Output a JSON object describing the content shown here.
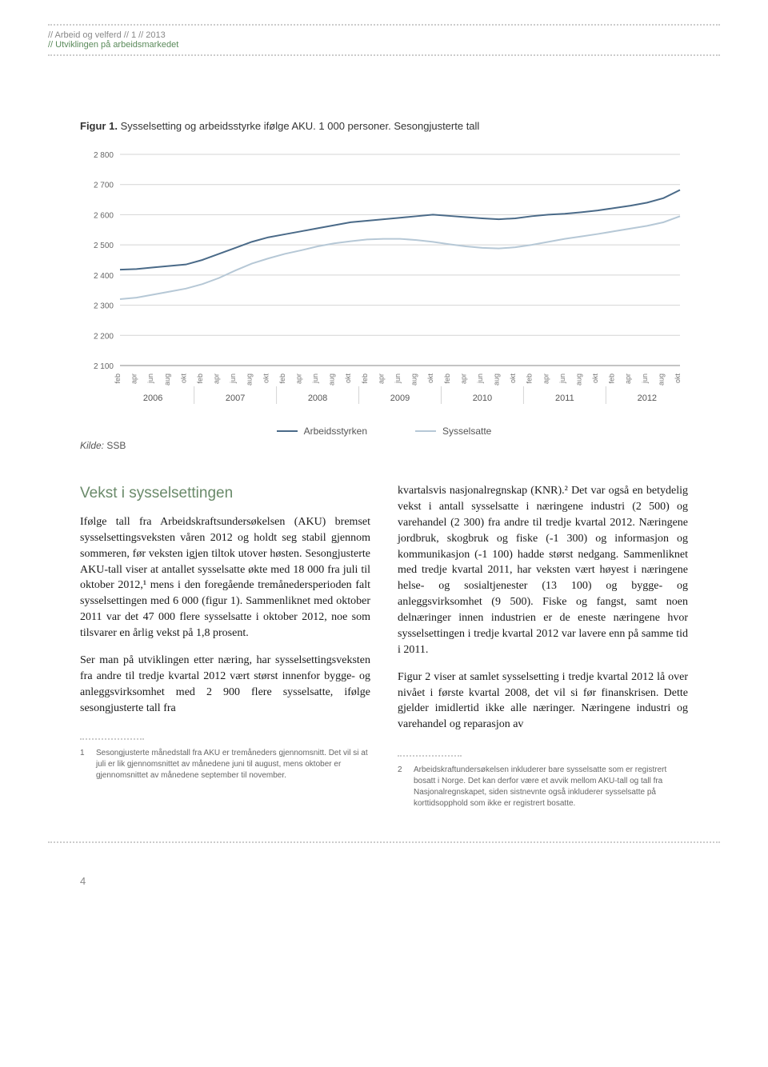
{
  "header": {
    "line1": "//  Arbeid og velferd  //  1  //  2013",
    "line2": "//  Utviklingen på arbeidsmarkedet"
  },
  "figure": {
    "caption_bold": "Figur 1.",
    "caption_rest": " Sysselsetting og arbeidsstyrke ifølge AKU. 1 000 personer. Sesongjusterte tall",
    "source_label": "Kilde:",
    "source_value": " SSB"
  },
  "chart": {
    "type": "line",
    "ylim": [
      2100,
      2800
    ],
    "ytick_step": 100,
    "yticks": [
      2100,
      2200,
      2300,
      2400,
      2500,
      2600,
      2700,
      2800
    ],
    "years": [
      2006,
      2007,
      2008,
      2009,
      2010,
      2011,
      2012
    ],
    "months": [
      "feb",
      "apr",
      "jun",
      "aug",
      "okt"
    ],
    "background_color": "#ffffff",
    "grid_color": "#d4d4d4",
    "axis_color": "#888888",
    "tick_font_size": 10,
    "year_font_size": 11,
    "line_width": 2,
    "series": [
      {
        "name": "Arbeidsstyrken",
        "color": "#4a6a88",
        "values": [
          2418,
          2420,
          2425,
          2430,
          2435,
          2450,
          2470,
          2490,
          2510,
          2525,
          2535,
          2545,
          2555,
          2565,
          2575,
          2580,
          2585,
          2590,
          2595,
          2600,
          2596,
          2592,
          2588,
          2585,
          2588,
          2595,
          2600,
          2603,
          2608,
          2614,
          2622,
          2630,
          2640,
          2655,
          2682
        ]
      },
      {
        "name": "Sysselsatte",
        "color": "#b6c8d6",
        "values": [
          2320,
          2325,
          2335,
          2345,
          2355,
          2370,
          2390,
          2415,
          2438,
          2455,
          2470,
          2482,
          2495,
          2505,
          2512,
          2518,
          2520,
          2520,
          2516,
          2510,
          2502,
          2495,
          2490,
          2488,
          2492,
          2500,
          2510,
          2520,
          2528,
          2536,
          2545,
          2554,
          2563,
          2575,
          2595
        ]
      }
    ],
    "legend": [
      {
        "label": "Arbeidsstyrken",
        "color": "#4a6a88"
      },
      {
        "label": "Sysselsatte",
        "color": "#b6c8d6"
      }
    ]
  },
  "body": {
    "heading": "Vekst i sysselsettingen",
    "left_paras": [
      "Ifølge tall fra Arbeidskraftsundersøkelsen (AKU) bremset sysselsettingsveksten våren 2012 og holdt seg stabil gjennom sommeren, før veksten igjen tiltok utover høsten. Sesongjusterte AKU-tall viser at antallet sysselsatte økte med 18 000 fra juli til oktober 2012,¹ mens i den foregående tremånedersperioden falt sysselsettingen med 6 000 (figur 1). Sammenliknet med oktober 2011 var det 47 000 flere sysselsatte i oktober 2012, noe som tilsvarer en årlig vekst på 1,8 prosent.",
      "Ser man på utviklingen etter næring, har sysselsettingsveksten fra andre til tredje kvartal 2012 vært størst innenfor bygge- og anleggsvirksomhet med 2 900 flere sysselsatte, ifølge sesongjusterte tall fra"
    ],
    "right_paras": [
      "kvartalsvis nasjonalregnskap (KNR).² Det var også en betydelig vekst i antall sysselsatte i næringene industri (2 500) og varehandel (2 300) fra andre til tredje kvartal 2012. Næringene jordbruk, skogbruk og fiske (-1 300) og informasjon og kommunikasjon (-1 100) hadde størst nedgang. Sammenliknet med tredje kvartal 2011, har veksten vært høyest i næringene helse- og sosialtjenester (13 100) og bygge- og anleggsvirksomhet (9 500). Fiske og fangst, samt noen delnæringer innen industrien er de eneste næringene hvor sysselsettingen i tredje kvartal 2012 var lavere enn på samme tid i 2011.",
      "Figur 2 viser at samlet sysselsetting i tredje kvartal 2012 lå over nivået i første kvartal 2008, det vil si før finanskrisen. Dette gjelder imidlertid ikke alle næringer. Næringene industri og varehandel og reparasjon av"
    ]
  },
  "footnotes": {
    "left": {
      "num": "1",
      "text": "Sesongjusterte månedstall fra AKU er tremåneders gjennomsnitt. Det vil si at juli er lik gjennomsnittet av månedene juni til august, mens oktober er gjennomsnittet av månedene september til november."
    },
    "right": {
      "num": "2",
      "text": "Arbeidskraftundersøkelsen inkluderer bare sysselsatte som er registrert bosatt i Norge. Det kan derfor være et avvik mellom AKU-tall og tall fra Nasjonalregnskapet, siden sistnevnte også inkluderer sysselsatte på korttidsopphold som ikke er registrert bosatte."
    }
  },
  "page_number": "4"
}
